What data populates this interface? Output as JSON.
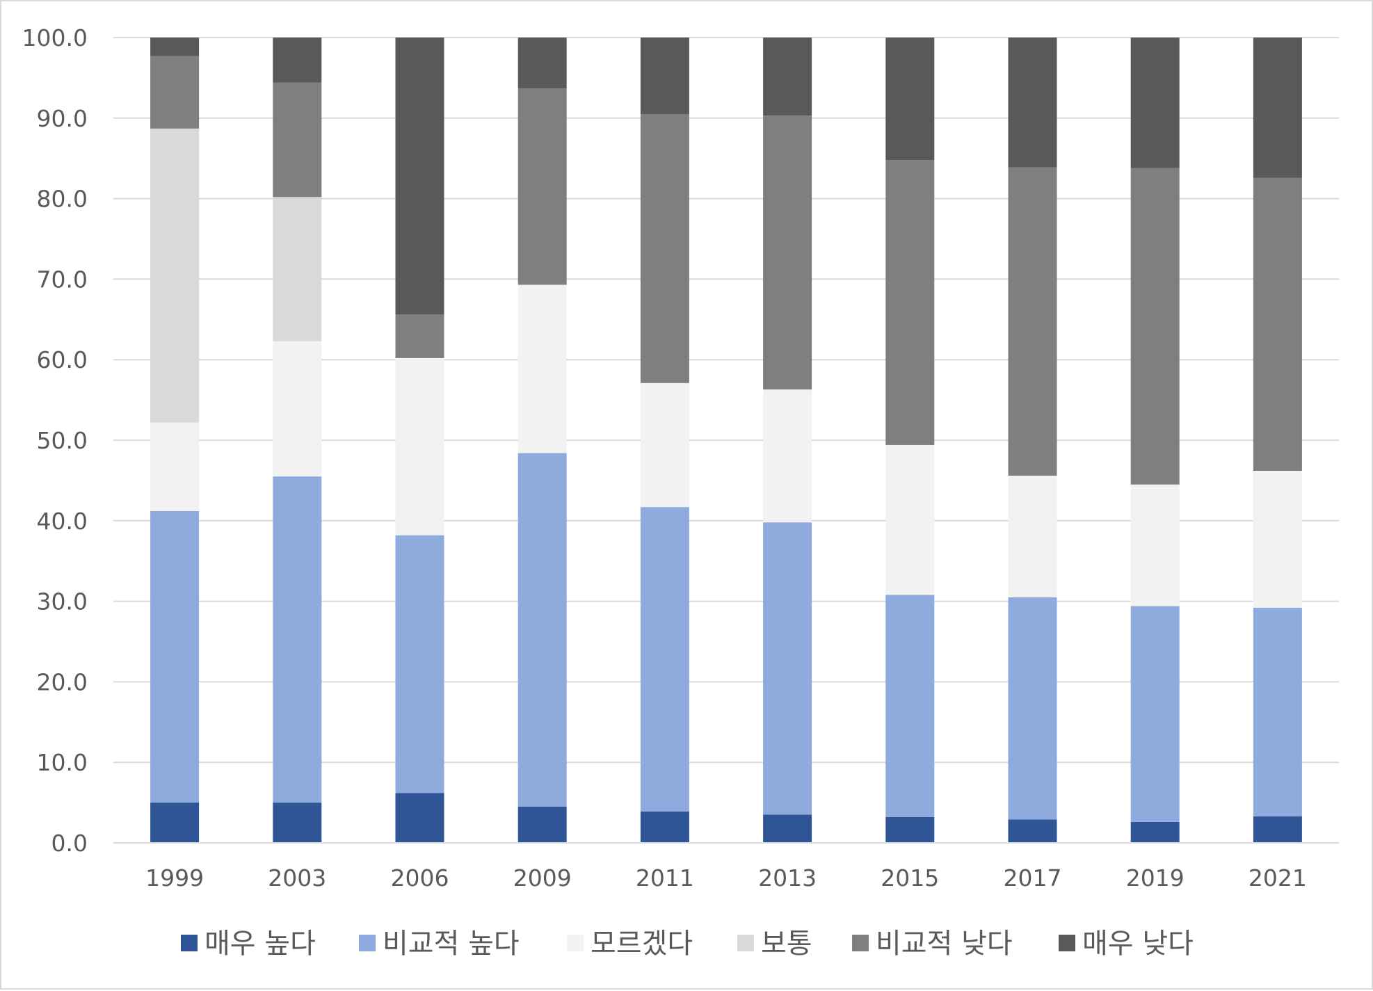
{
  "chart_data": {
    "type": "bar",
    "stacked": true,
    "categories": [
      "1999",
      "2003",
      "2006",
      "2009",
      "2011",
      "2013",
      "2015",
      "2017",
      "2019",
      "2021"
    ],
    "ylim": [
      0,
      100
    ],
    "yticks": [
      "0.0",
      "10.0",
      "20.0",
      "30.0",
      "40.0",
      "50.0",
      "60.0",
      "70.0",
      "80.0",
      "90.0",
      "100.0"
    ],
    "grid": true,
    "legend_position": "bottom",
    "series": [
      {
        "name": "매우 높다",
        "color": "#2f5597",
        "values": [
          5.0,
          5.0,
          6.2,
          4.5,
          3.9,
          3.5,
          3.2,
          2.9,
          2.6,
          3.3
        ]
      },
      {
        "name": "비교적 높다",
        "color": "#8faadc",
        "values": [
          36.2,
          40.5,
          32.0,
          43.9,
          37.8,
          36.3,
          27.6,
          27.6,
          26.8,
          25.9
        ]
      },
      {
        "name": "모르겠다",
        "color": "#f2f2f2",
        "values": [
          11.0,
          16.8,
          22.0,
          20.9,
          15.4,
          16.5,
          18.6,
          15.1,
          15.1,
          17.0
        ]
      },
      {
        "name": "보통",
        "color": "#d9d9d9",
        "values": [
          36.5,
          17.9,
          0.0,
          0.0,
          0.0,
          0.0,
          0.0,
          0.0,
          0.0,
          0.0
        ]
      },
      {
        "name": "비교적 낮다",
        "color": "#7f7f7f",
        "values": [
          9.0,
          14.2,
          5.4,
          24.4,
          33.4,
          34.0,
          35.4,
          38.3,
          39.3,
          36.4
        ]
      },
      {
        "name": "매우 낮다",
        "color": "#595959",
        "values": [
          2.3,
          5.6,
          34.4,
          6.3,
          9.5,
          9.7,
          15.2,
          16.1,
          16.2,
          17.4
        ]
      }
    ]
  }
}
